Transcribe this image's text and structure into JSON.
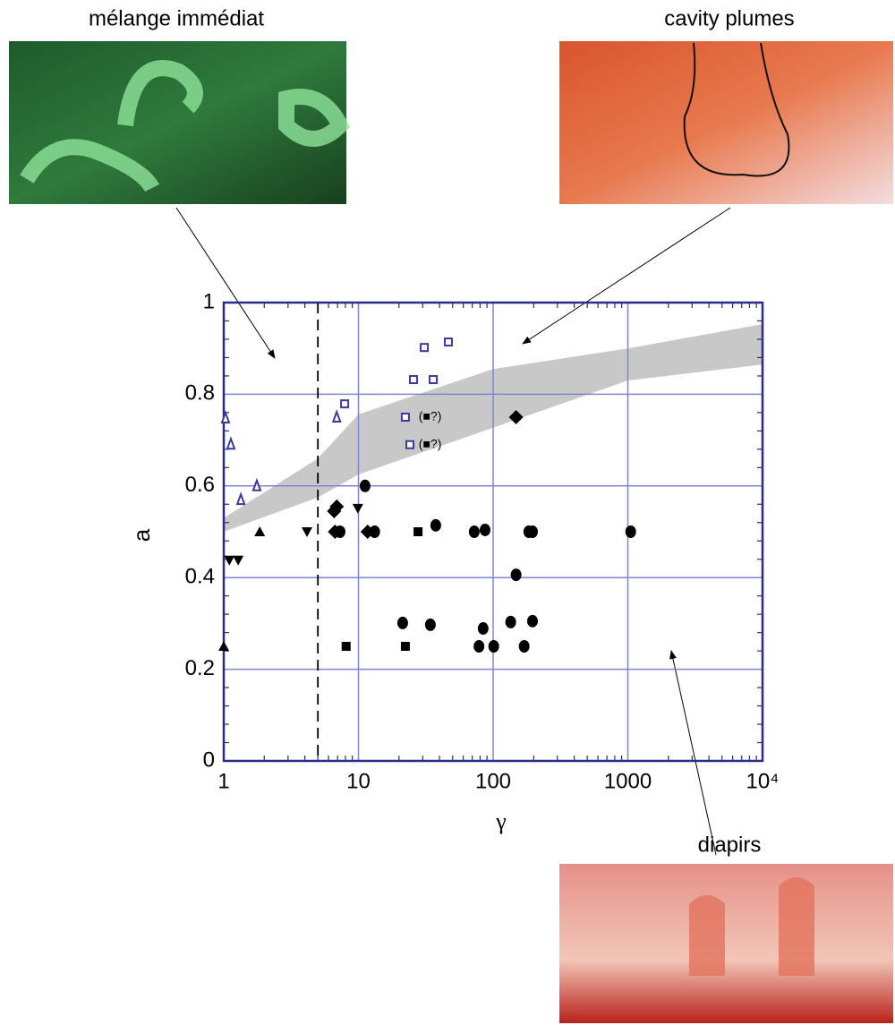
{
  "panels": [
    {
      "label": "mélange immédiat"
    },
    {
      "label": "cavity plumes"
    },
    {
      "label": "diapirs"
    }
  ],
  "chart_data": {
    "type": "scatter",
    "xlabel": "γ",
    "ylabel": "a",
    "xlim": [
      1,
      10000
    ],
    "ylim": [
      0,
      1
    ],
    "xscale": "log",
    "grid": true,
    "xticks": [
      1,
      10,
      100,
      1000,
      {
        "value": 10000,
        "label": "10⁴"
      }
    ],
    "yticks": [
      0,
      0.2,
      0.4,
      0.6,
      0.8,
      1
    ],
    "threshold_x": 5,
    "band": {
      "color": "#c8c8c8",
      "x": [
        1,
        5,
        10,
        100,
        1000,
        10000
      ],
      "lower": [
        0.5,
        0.575,
        0.625,
        0.727,
        0.83,
        0.865
      ],
      "upper": [
        0.53,
        0.66,
        0.756,
        0.855,
        0.9,
        0.953
      ]
    },
    "series": [
      {
        "marker": "square-open",
        "color": "#3a3aa0",
        "x": [
          22.3,
          24.1,
          25.6,
          35.9,
          30.8,
          46.5,
          7.9
        ],
        "values": [
          0.75,
          0.69,
          0.832,
          0.832,
          0.902,
          0.914,
          0.779
        ]
      },
      {
        "marker": "triangle-open",
        "color": "#3a3aa0",
        "x": [
          1.03,
          1.13,
          1.34,
          1.76,
          6.9
        ],
        "values": [
          0.748,
          0.691,
          0.57,
          0.6,
          0.75
        ]
      },
      {
        "marker": "circle",
        "color": "#000000",
        "x": [
          11.2,
          7.3,
          13.2,
          21.3,
          34.2,
          37.5,
          72.4,
          87.1,
          84.3,
          78.5,
          101,
          135,
          170,
          184,
          196,
          196,
          148,
          1050
        ],
        "values": [
          0.6,
          0.5,
          0.5,
          0.301,
          0.297,
          0.514,
          0.5,
          0.504,
          0.289,
          0.25,
          0.25,
          0.303,
          0.25,
          0.5,
          0.5,
          0.305,
          0.406,
          0.5
        ]
      },
      {
        "marker": "diamond",
        "color": "#000000",
        "x": [
          6.6,
          6.9,
          6.7,
          11.7,
          148
        ],
        "values": [
          0.545,
          0.555,
          0.5,
          0.5,
          0.75
        ]
      },
      {
        "marker": "square",
        "color": "#000000",
        "x": [
          8.1,
          22.3,
          27.7
        ],
        "values": [
          0.25,
          0.25,
          0.5
        ]
      },
      {
        "marker": "triangle",
        "color": "#000000",
        "x": [
          1.0,
          1.85
        ],
        "values": [
          0.25,
          0.5
        ]
      },
      {
        "marker": "triangle-down",
        "color": "#000000",
        "x": [
          1.1,
          1.28,
          4.15,
          9.9
        ],
        "values": [
          0.438,
          0.438,
          0.5,
          0.551
        ]
      }
    ],
    "annotations": [
      {
        "text": "(■?)",
        "x": 28,
        "y": 0.75
      },
      {
        "text": "(■?)",
        "x": 28,
        "y": 0.69
      }
    ]
  }
}
